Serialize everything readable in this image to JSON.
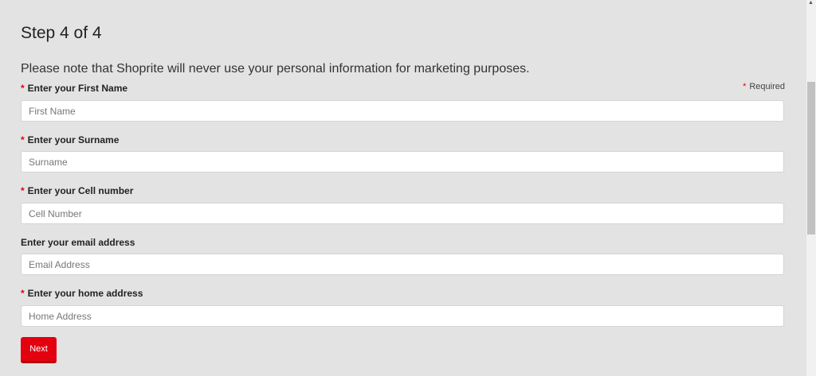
{
  "title": "Step 4 of 4",
  "note": "Please note that Shoprite will never use your personal information for marketing purposes.",
  "required_marker": "*",
  "required_text": "Required",
  "fields": [
    {
      "label": "Enter your First Name",
      "required": true,
      "placeholder": "First Name",
      "value": ""
    },
    {
      "label": "Enter your Surname",
      "required": true,
      "placeholder": "Surname",
      "value": ""
    },
    {
      "label": "Enter your Cell number",
      "required": true,
      "placeholder": "Cell Number",
      "value": ""
    },
    {
      "label": "Enter your email address",
      "required": false,
      "placeholder": "Email Address",
      "value": ""
    },
    {
      "label": "Enter your home address",
      "required": true,
      "placeholder": "Home Address",
      "value": ""
    }
  ],
  "next_label": "Next",
  "colors": {
    "accent": "#e3000f",
    "background": "#e3e3e3"
  }
}
